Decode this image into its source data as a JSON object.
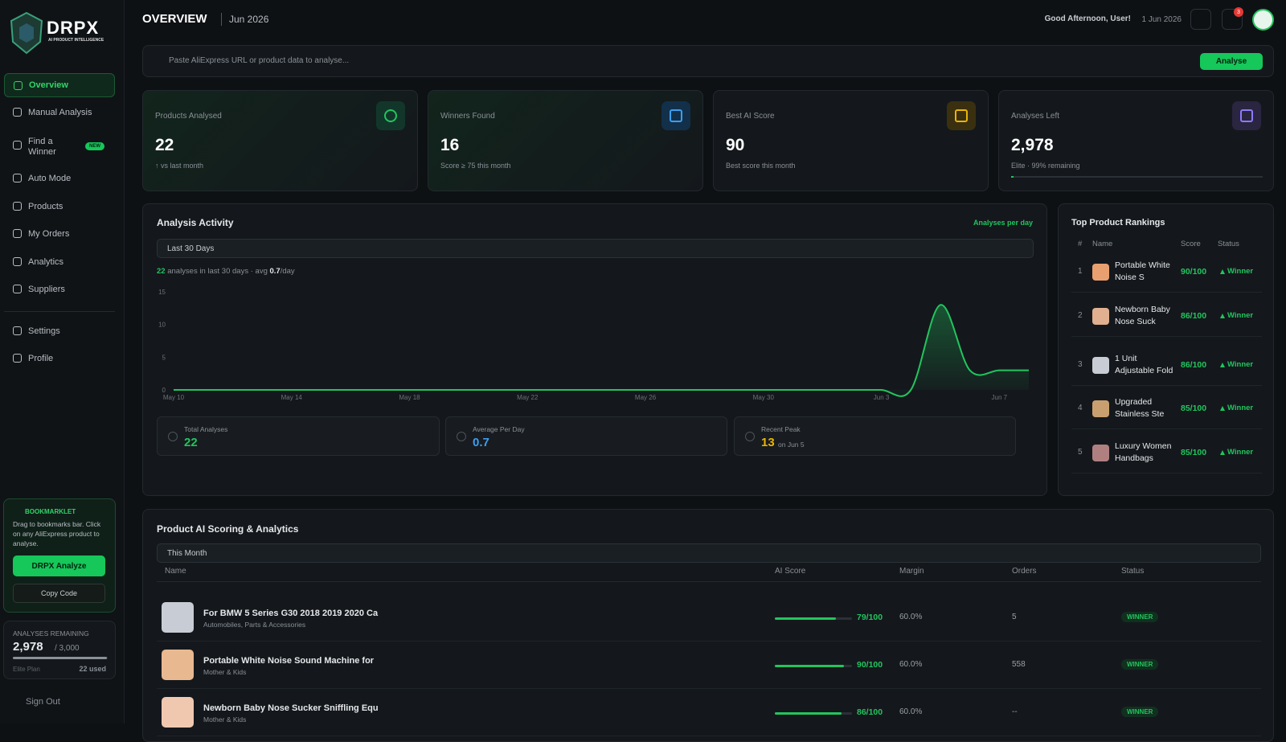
{
  "sidebar": {
    "brand": "DRPX",
    "tagline": "AI PRODUCT INTELLIGENCE",
    "nav": [
      "Overview",
      "Manual Analysis",
      "Find a Winner",
      "Auto Mode",
      "Products",
      "My Orders",
      "Analytics",
      "Suppliers"
    ],
    "new_badge": "NEW",
    "nav2": [
      "Settings",
      "Profile"
    ],
    "bookmarklet": {
      "title": "BOOKMARKLET",
      "text": "Drag to bookmarks bar. Click on any AliExpress product to analyse.",
      "button": "DRPX Analyze",
      "copy": "Copy Code"
    },
    "remaining": {
      "title": "ANALYSES REMAINING",
      "value": "2,978",
      "total": "/ 3,000",
      "plan": "Elite Plan",
      "used": "22 used"
    },
    "sign_out": "Sign Out"
  },
  "header": {
    "title": "OVERVIEW",
    "period": "Jun 2026",
    "greeting": "Good Afternoon, User!",
    "date": "1 Jun 2026",
    "notifications": "3"
  },
  "search": {
    "placeholder": "Paste AliExpress URL or product data to analyse...",
    "button": "Analyse"
  },
  "stats": [
    {
      "label": "Products Analysed",
      "value": "22",
      "note": "↑ vs last month"
    },
    {
      "label": "Winners Found",
      "value": "16",
      "note": "Score ≥ 75 this month"
    },
    {
      "label": "Best AI Score",
      "value": "90",
      "note": "Best score this month"
    },
    {
      "label": "Analyses Left",
      "value": "2,978",
      "note": "Elite · 99% remaining"
    }
  ],
  "activity": {
    "title": "Analysis Activity",
    "range": "Last 30 Days",
    "count": "22",
    "count_text": "analyses in last 30 days",
    "avg_label": "· avg",
    "avg": "0.7",
    "avg_unit": "/day",
    "kpis": [
      {
        "label": "Total Analyses",
        "value": "22"
      },
      {
        "label": "Average Per Day",
        "value": "0.7"
      },
      {
        "label": "Recent Peak",
        "value": "13",
        "note": "on Jun 5"
      }
    ]
  },
  "chart_data": {
    "type": "line",
    "categories": [
      "May 10",
      null,
      null,
      null,
      "May 14",
      null,
      null,
      null,
      "May 18",
      null,
      null,
      null,
      "May 22",
      null,
      null,
      null,
      "May 26",
      null,
      null,
      null,
      "May 30",
      null,
      null,
      null,
      "Jun 3",
      null,
      null,
      null,
      "Jun 7",
      null
    ],
    "series": [
      {
        "name": "Analyses per day",
        "color": "#22c55e",
        "values": [
          0,
          0,
          0,
          0,
          0,
          0,
          0,
          0,
          0,
          0,
          0,
          0,
          0,
          0,
          0,
          0,
          0,
          0,
          0,
          0,
          0,
          0,
          0,
          0,
          0,
          0,
          13,
          3,
          3,
          3
        ]
      }
    ],
    "ylim": [
      0,
      15
    ],
    "yticks": [
      0,
      5,
      10,
      15
    ],
    "grid": false,
    "legend": "top-right"
  },
  "rankings": {
    "title": "Top Product Rankings",
    "columns": [
      "#",
      "Name",
      "Score",
      "Status"
    ],
    "rows": [
      {
        "rank": "1",
        "name": "Portable White Noise S",
        "score": {
          "value": 90,
          "label": "90/100"
        },
        "status": "Winner"
      },
      {
        "rank": "2",
        "name": "Newborn Baby Nose Suck",
        "score": {
          "value": 86,
          "label": "86/100"
        },
        "status": "Winner"
      },
      {
        "rank": "3",
        "name": "1 Unit Adjustable Fold",
        "score": {
          "value": 86,
          "label": "86/100"
        },
        "status": "Winner"
      },
      {
        "rank": "4",
        "name": "Upgraded Stainless Ste",
        "score": {
          "value": 85,
          "label": "85/100"
        },
        "status": "Winner"
      },
      {
        "rank": "5",
        "name": "Luxury Women Handbags",
        "score": {
          "value": 85,
          "label": "85/100"
        },
        "status": "Winner"
      }
    ]
  },
  "scoring": {
    "title": "Product AI Scoring & Analytics",
    "range": "This Month",
    "columns": [
      "Name",
      "AI Score",
      "Margin",
      "Orders",
      "Status"
    ],
    "rows": [
      {
        "name": "For BMW 5 Series G30 2018 2019 2020 Ca",
        "category": "Automobiles, Parts & Accessories",
        "score": {
          "value": 79,
          "label": "79/100"
        },
        "margin": "60.0%",
        "orders": "5",
        "status": "WINNER"
      },
      {
        "name": "Portable White Noise Sound Machine for",
        "category": "Mother & Kids",
        "score": {
          "value": 90,
          "label": "90/100"
        },
        "margin": "60.0%",
        "orders": "558",
        "status": "WINNER"
      },
      {
        "name": "Newborn Baby Nose Sucker Sniffling Equ",
        "category": "Mother & Kids",
        "score": {
          "value": 86,
          "label": "86/100"
        },
        "margin": "60.0%",
        "orders": "--",
        "status": "WINNER"
      }
    ]
  }
}
